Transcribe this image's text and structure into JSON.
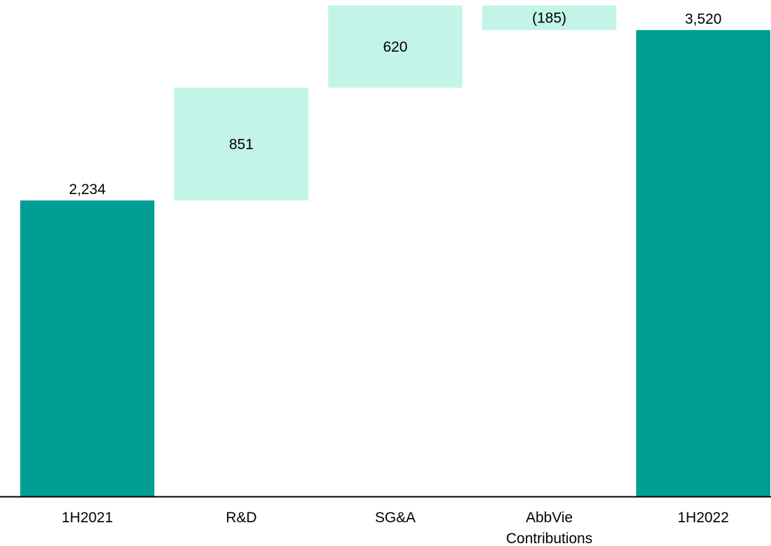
{
  "chart_data": {
    "type": "bar",
    "subtype": "waterfall",
    "categories": [
      "1H2021",
      "R&D",
      "SG&A",
      "AbbVie Contributions",
      "1H2022"
    ],
    "category_label_lines": [
      [
        "1H2021"
      ],
      [
        "R&D"
      ],
      [
        "SG&A"
      ],
      [
        "AbbVie",
        "Contributions"
      ],
      [
        "1H2022"
      ]
    ],
    "values": [
      2234,
      851,
      620,
      -185,
      3520
    ],
    "data_labels": [
      "2,234",
      "851",
      "620",
      "(185)",
      "3,520"
    ],
    "bar_kinds": [
      "total",
      "delta",
      "delta",
      "delta",
      "total"
    ],
    "title": "",
    "xlabel": "",
    "ylabel": "",
    "ylim": [
      0,
      3705
    ],
    "grid": false,
    "legend": "none",
    "colors": {
      "total": "#009E94",
      "delta": "#C2F4E7",
      "axis": "#000000",
      "text": "#000000"
    }
  }
}
